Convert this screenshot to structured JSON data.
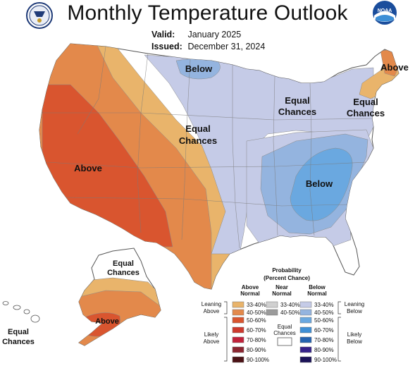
{
  "title": "Monthly Temperature Outlook",
  "valid_label": "Valid:",
  "valid_value": "January 2025",
  "issued_label": "Issued:",
  "issued_value": "December 31, 2024",
  "logos": {
    "left": {
      "icon": "commerce-seal-icon"
    },
    "right": {
      "icon": "noaa-logo-icon",
      "text": "NOAA"
    }
  },
  "region_labels": {
    "below_north": "Below",
    "above_northeast": "Above",
    "equal_greatlakes_1": "Equal",
    "equal_greatlakes_2": "Chances",
    "equal_northeast_1": "Equal",
    "equal_northeast_2": "Chances",
    "equal_plains_1": "Equal",
    "equal_plains_2": "Chances",
    "above_west": "Above",
    "below_southeast": "Below",
    "ak_equal_1": "Equal",
    "ak_equal_2": "Chances",
    "ak_above": "Above",
    "hi_equal_1": "Equal",
    "hi_equal_2": "Chances"
  },
  "colors": {
    "above_33_40": "#e9b46b",
    "above_40_50": "#e3894b",
    "above_50_60": "#d9552f",
    "above_60_70": "#cd3a2e",
    "above_70_80": "#c1223a",
    "above_80_90": "#8b2530",
    "above_90_100": "#4b1215",
    "near_33_40": "#d0d0d0",
    "near_40_50": "#9b9b9b",
    "below_33_40": "#c5cbe7",
    "below_40_50": "#94b4df",
    "below_50_60": "#6aa8e0",
    "below_60_70": "#3f8fd5",
    "below_70_80": "#2463b0",
    "below_80_90": "#35218a",
    "below_90_100": "#1b1358"
  },
  "legend": {
    "title_1": "Probability",
    "title_2": "(Percent Chance)",
    "col_above_1": "Above",
    "col_above_2": "Normal",
    "col_near_1": "Near",
    "col_near_2": "Normal",
    "col_below_1": "Below",
    "col_below_2": "Normal",
    "leaning_above_1": "Leaning",
    "leaning_above_2": "Above",
    "likely_above_1": "Likely",
    "likely_above_2": "Above",
    "leaning_below_1": "Leaning",
    "leaning_below_2": "Below",
    "likely_below_1": "Likely",
    "likely_below_2": "Below",
    "equal_1": "Equal",
    "equal_2": "Chances",
    "above_ranges": [
      "33-40%",
      "40-50%",
      "50-60%",
      "60-70%",
      "70-80%",
      "80-90%",
      "90-100%"
    ],
    "near_ranges": [
      "33-40%",
      "40-50%"
    ],
    "below_ranges": [
      "33-40%",
      "40-50%",
      "50-60%",
      "60-70%",
      "70-80%",
      "80-90%",
      "90-100%"
    ]
  }
}
